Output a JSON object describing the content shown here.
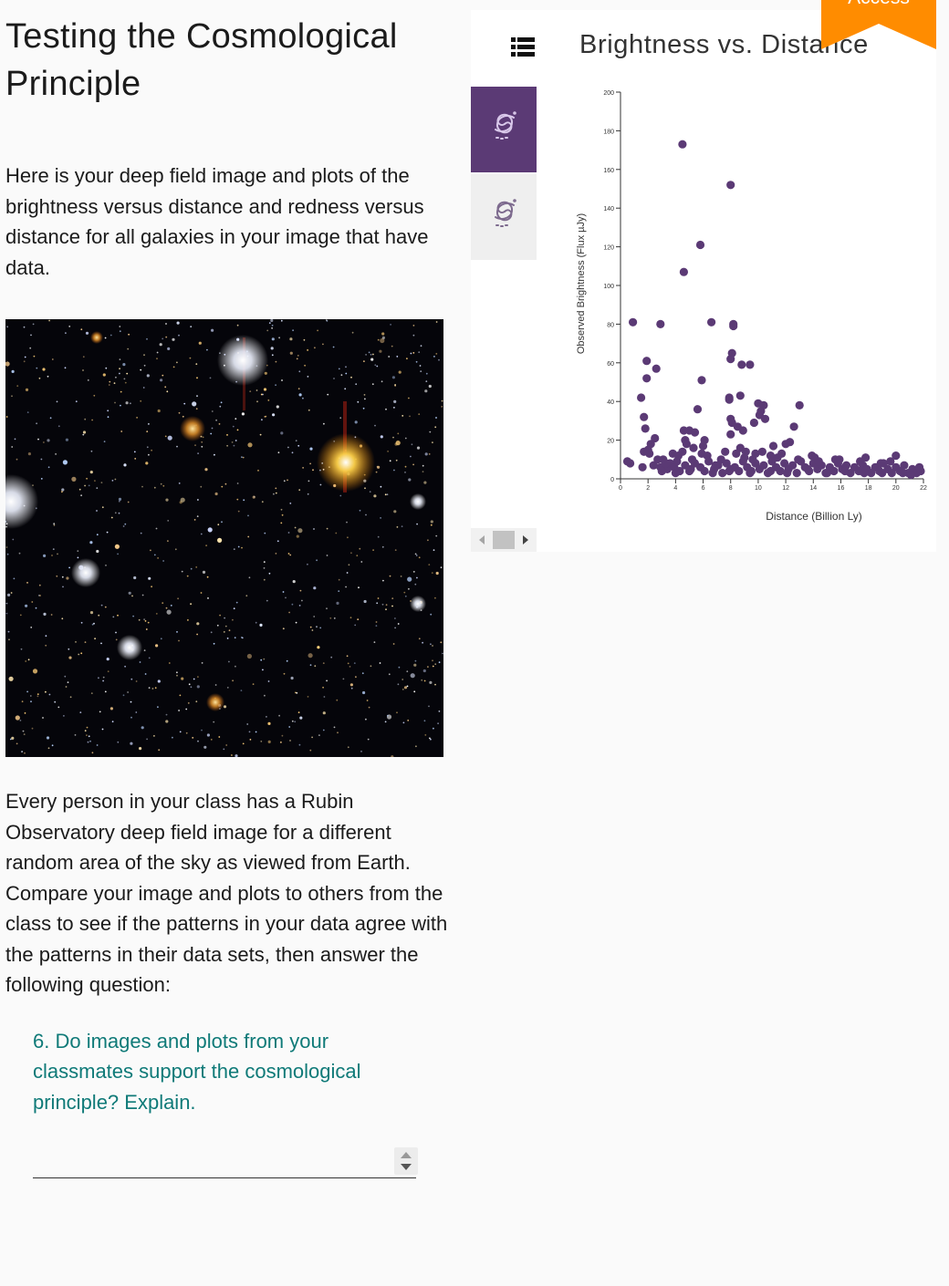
{
  "page": {
    "title": "Testing the Cosmological Principle",
    "intro": "Here is your deep field image and plots of the brightness versus distance and redness versus distance for all galaxies in your image that have data.",
    "body": "Every person in your class has a Rubin Observatory deep field image for a different random area of the sky as viewed from Earth. Compare your image and plots to others from the class to see if the patterns in your data agree with the patterns in their data sets, then answer the following question:",
    "question": "6. Do images and plots from your classmates support the cosmological principle? Explain.",
    "answer_value": ""
  },
  "ribbon": {
    "label": "Access",
    "color": "#ff8c00"
  },
  "sidebar": {
    "tabs": [
      {
        "icon": "galaxy-icon",
        "active": true
      },
      {
        "icon": "galaxy-icon",
        "active": false
      }
    ],
    "accent": "#5b3a75"
  },
  "chart_data": {
    "type": "scatter",
    "title": "Brightness vs. Distance",
    "xlabel": "Distance (Billion Ly)",
    "ylabel": "Observed Brightness (Flux µJy)",
    "xlim": [
      0,
      22
    ],
    "ylim": [
      0,
      200
    ],
    "xticks": [
      0,
      2,
      4,
      6,
      8,
      10,
      12,
      14,
      16,
      18,
      20,
      22
    ],
    "yticks": [
      0,
      20,
      40,
      60,
      80,
      100,
      120,
      140,
      160,
      180,
      200
    ],
    "color": "#5b3a75",
    "points": [
      [
        4.5,
        173
      ],
      [
        8,
        152
      ],
      [
        5.8,
        121
      ],
      [
        4.6,
        107
      ],
      [
        0.9,
        81
      ],
      [
        2.9,
        80
      ],
      [
        6.6,
        81
      ],
      [
        8.2,
        80
      ],
      [
        8.2,
        79
      ],
      [
        1.9,
        61
      ],
      [
        8.1,
        65
      ],
      [
        8,
        62
      ],
      [
        8.8,
        59
      ],
      [
        9.4,
        59
      ],
      [
        2.6,
        57
      ],
      [
        1.9,
        52
      ],
      [
        5.9,
        51
      ],
      [
        1.5,
        42
      ],
      [
        7.9,
        42
      ],
      [
        7.9,
        41
      ],
      [
        8.7,
        43
      ],
      [
        10,
        39
      ],
      [
        10.4,
        38
      ],
      [
        13,
        38
      ],
      [
        5.6,
        36
      ],
      [
        10.2,
        35
      ],
      [
        10.1,
        33
      ],
      [
        10.5,
        31
      ],
      [
        1.7,
        32
      ],
      [
        8,
        31
      ],
      [
        8.1,
        29
      ],
      [
        9.7,
        29
      ],
      [
        8.5,
        27
      ],
      [
        12.6,
        27
      ],
      [
        1.8,
        26
      ],
      [
        4.6,
        25
      ],
      [
        5,
        25
      ],
      [
        8.9,
        25
      ],
      [
        5.4,
        24
      ],
      [
        8,
        23
      ],
      [
        2.5,
        21
      ],
      [
        4.7,
        20
      ],
      [
        6.1,
        20
      ],
      [
        2.2,
        18
      ],
      [
        4.8,
        18
      ],
      [
        12,
        18
      ],
      [
        12.3,
        19
      ],
      [
        11.1,
        17
      ],
      [
        6,
        17
      ],
      [
        5.3,
        16
      ],
      [
        8.7,
        16
      ],
      [
        2,
        15
      ],
      [
        2.1,
        13
      ],
      [
        1.7,
        14
      ],
      [
        3.8,
        13
      ],
      [
        4.2,
        12
      ],
      [
        4.5,
        14
      ],
      [
        5.9,
        13
      ],
      [
        6.3,
        12
      ],
      [
        7.6,
        14
      ],
      [
        8.4,
        13
      ],
      [
        9.1,
        14
      ],
      [
        9.8,
        13
      ],
      [
        10.3,
        14
      ],
      [
        10.9,
        12
      ],
      [
        11.7,
        13
      ],
      [
        13.9,
        12
      ],
      [
        14.1,
        11
      ],
      [
        15.6,
        10
      ],
      [
        17.8,
        11
      ],
      [
        20,
        12
      ],
      [
        0.5,
        9
      ],
      [
        0.7,
        8
      ],
      [
        1.6,
        6
      ],
      [
        2.4,
        7
      ],
      [
        2.9,
        6
      ],
      [
        3.1,
        10
      ],
      [
        3.4,
        5
      ],
      [
        3.6,
        8
      ],
      [
        3.9,
        6
      ],
      [
        4.1,
        9
      ],
      [
        4.3,
        4
      ],
      [
        4.7,
        7
      ],
      [
        5.1,
        5
      ],
      [
        5.4,
        8
      ],
      [
        5.8,
        6
      ],
      [
        6.1,
        4
      ],
      [
        6.4,
        9
      ],
      [
        6.8,
        5
      ],
      [
        7.1,
        7
      ],
      [
        7.4,
        3
      ],
      [
        7.7,
        8
      ],
      [
        8,
        5
      ],
      [
        8.3,
        6
      ],
      [
        8.6,
        4
      ],
      [
        8.9,
        9
      ],
      [
        9.2,
        6
      ],
      [
        9.5,
        4
      ],
      [
        9.8,
        8
      ],
      [
        10.1,
        5
      ],
      [
        10.4,
        7
      ],
      [
        10.7,
        3
      ],
      [
        11,
        9
      ],
      [
        11.3,
        6
      ],
      [
        11.6,
        4
      ],
      [
        11.9,
        8
      ],
      [
        12.2,
        5
      ],
      [
        12.5,
        7
      ],
      [
        12.8,
        3
      ],
      [
        13.1,
        9
      ],
      [
        13.4,
        6
      ],
      [
        13.7,
        4
      ],
      [
        14,
        8
      ],
      [
        14.3,
        5
      ],
      [
        14.6,
        7
      ],
      [
        14.9,
        3
      ],
      [
        15.2,
        6
      ],
      [
        15.5,
        4
      ],
      [
        15.8,
        8
      ],
      [
        16.1,
        5
      ],
      [
        16.4,
        7
      ],
      [
        16.7,
        3
      ],
      [
        17,
        6
      ],
      [
        17.3,
        4
      ],
      [
        17.6,
        7
      ],
      [
        17.9,
        5
      ],
      [
        18.2,
        3
      ],
      [
        18.5,
        6
      ],
      [
        18.8,
        4
      ],
      [
        19.1,
        8
      ],
      [
        19.4,
        5
      ],
      [
        19.7,
        3
      ],
      [
        20,
        6
      ],
      [
        20.3,
        4
      ],
      [
        20.6,
        7
      ],
      [
        20.9,
        3
      ],
      [
        21.2,
        5
      ],
      [
        21.5,
        3
      ],
      [
        21.8,
        4
      ],
      [
        3,
        4
      ],
      [
        4,
        3
      ],
      [
        5,
        4
      ],
      [
        6.7,
        3
      ],
      [
        7.9,
        4
      ],
      [
        9.4,
        3
      ],
      [
        10.9,
        4
      ],
      [
        12.1,
        3
      ],
      [
        13.6,
        5
      ],
      [
        15,
        3
      ],
      [
        16.3,
        4
      ],
      [
        17.7,
        3
      ],
      [
        19,
        3
      ],
      [
        20.5,
        3
      ],
      [
        21.1,
        2
      ],
      [
        2.7,
        10
      ],
      [
        3.3,
        8
      ],
      [
        5.2,
        10
      ],
      [
        6.9,
        7
      ],
      [
        7.3,
        10
      ],
      [
        9,
        11
      ],
      [
        9.6,
        10
      ],
      [
        11.4,
        11
      ],
      [
        12.9,
        10
      ],
      [
        14.4,
        9
      ],
      [
        15.9,
        10
      ],
      [
        17.4,
        9
      ],
      [
        18.9,
        8
      ],
      [
        19.6,
        9
      ],
      [
        21.7,
        6
      ]
    ]
  }
}
